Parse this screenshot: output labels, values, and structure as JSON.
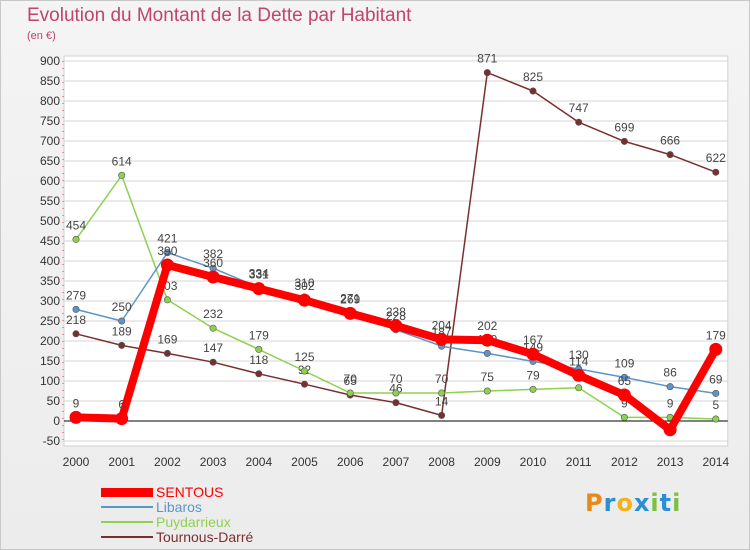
{
  "header": {
    "title": "Evolution du Montant de la Dette par Habitant",
    "unit": "(en €)"
  },
  "logo": {
    "text": "Proxiti"
  },
  "colors": {
    "title": "#c0446f",
    "sentous": "#ff0000",
    "libaros": "#5b95c9",
    "puydarrieux": "#8fd14f",
    "tournous": "#7a2f2f",
    "grid": "#d6d6d6",
    "zero_line": "#000000"
  },
  "chart_data": {
    "type": "line",
    "x": [
      "2000",
      "2001",
      "2002",
      "2003",
      "2004",
      "2005",
      "2006",
      "2007",
      "2008",
      "2009",
      "2010",
      "2011",
      "2012",
      "2013",
      "2014"
    ],
    "ylim": [
      -50,
      900
    ],
    "yticks": [
      "-50",
      "0",
      "50",
      "100",
      "150",
      "200",
      "250",
      "300",
      "350",
      "400",
      "450",
      "500",
      "550",
      "600",
      "650",
      "700",
      "750",
      "800",
      "850",
      "900"
    ],
    "grid": "horizontal",
    "legend_position": "bottom-left",
    "series": [
      {
        "name": "Tournous-Darré",
        "color": "#7a2f2f",
        "values": [
          218,
          189,
          169,
          147,
          118,
          92,
          65,
          46,
          14,
          871,
          825,
          747,
          699,
          666,
          622
        ],
        "labels": [
          "218",
          "189",
          "169",
          "147",
          "118",
          "92",
          "65",
          "46",
          "14",
          "871",
          "825",
          "747",
          "699",
          "666",
          "622"
        ]
      },
      {
        "name": "Puydarrieux",
        "color": "#8fd14f",
        "values": [
          454,
          614,
          303,
          232,
          179,
          125,
          70,
          70,
          70,
          75,
          79,
          83,
          9,
          9,
          5
        ],
        "labels": [
          "454",
          "614",
          "303",
          "232",
          "179",
          "125",
          "70",
          "70",
          "70",
          "75",
          "79",
          "",
          "9",
          "9",
          "5"
        ]
      },
      {
        "name": "Libaros",
        "color": "#5b95c9",
        "values": [
          279,
          250,
          421,
          382,
          334,
          310,
          271,
          228,
          187,
          169,
          149,
          130,
          109,
          86,
          69
        ],
        "labels": [
          "279",
          "250",
          "421",
          "382",
          "334",
          "310",
          "271",
          "228",
          "187",
          "169",
          "149",
          "130",
          "109",
          "86",
          "69"
        ]
      },
      {
        "name": "SENTOUS",
        "color": "#ff0000",
        "values": [
          9,
          6,
          390,
          360,
          331,
          302,
          269,
          238,
          204,
          202,
          167,
          114,
          65,
          -22,
          179
        ],
        "labels": [
          "9",
          "6",
          "390",
          "360",
          "331",
          "302",
          "269",
          "238",
          "204",
          "202",
          "167",
          "114",
          "65",
          "",
          "179"
        ]
      }
    ],
    "legend": [
      "SENTOUS",
      "Libaros",
      "Puydarrieux",
      "Tournous-Darré"
    ]
  }
}
